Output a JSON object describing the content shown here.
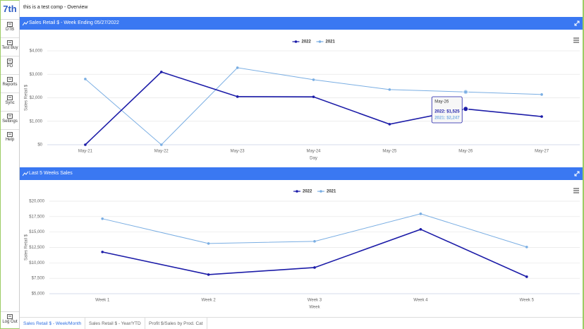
{
  "sidebar": {
    "logo": "7th",
    "items": [
      "DTB",
      "Test Buy",
      "PO",
      "Reports",
      "Sync",
      "Settings",
      "Help"
    ],
    "logout": "Log Out"
  },
  "header": {
    "title": "this is a test comp - Overview"
  },
  "panels": [
    {
      "title": "Sales Retail $ - Week Ending 05/27/2022",
      "chart_data": {
        "type": "line",
        "xlabel": "Day",
        "ylabel": "Sales Retail $",
        "categories": [
          "May-21",
          "May-22",
          "May-23",
          "May-24",
          "May-25",
          "May-26",
          "May-27"
        ],
        "series": [
          {
            "name": "2022",
            "color": "#1c1ca8",
            "values": [
              0,
              3100,
              2050,
              2040,
              875,
              1525,
              1200
            ]
          },
          {
            "name": "2021",
            "color": "#7aaee3",
            "values": [
              2800,
              0,
              3280,
              2770,
              2350,
              2247,
              2140
            ]
          }
        ],
        "ylim": [
          0,
          4000
        ],
        "yticks": [
          {
            "value": 0,
            "label": "$0"
          },
          {
            "value": 1000,
            "label": "$1,000"
          },
          {
            "value": 2000,
            "label": "$2,000"
          },
          {
            "value": 3000,
            "label": "$3,000"
          },
          {
            "value": 4000,
            "label": "$4,000"
          }
        ],
        "grid": true,
        "tooltip": {
          "title": "May-26",
          "lines": [
            "2022: $1,525",
            "2021: $2,247"
          ]
        }
      }
    },
    {
      "title": "Last 5 Weeks Sales",
      "chart_data": {
        "type": "line",
        "xlabel": "Week",
        "ylabel": "Sales Retail $",
        "categories": [
          "Week 1",
          "Week 2",
          "Week 3",
          "Week 4",
          "Week 5"
        ],
        "series": [
          {
            "name": "2022",
            "color": "#1c1ca8",
            "values": [
              11770,
              8100,
              9240,
              15440,
              7750
            ]
          },
          {
            "name": "2021",
            "color": "#7aaee3",
            "values": [
              17160,
              13140,
              13490,
              17960,
              12570
            ]
          }
        ],
        "ylim": [
          5000,
          20000
        ],
        "yticks": [
          {
            "value": 5000,
            "label": "$5,000"
          },
          {
            "value": 7500,
            "label": "$7,500"
          },
          {
            "value": 10000,
            "label": "$10,000"
          },
          {
            "value": 12500,
            "label": "$12,500"
          },
          {
            "value": 15000,
            "label": "$15,000"
          },
          {
            "value": 17500,
            "label": "$17,500"
          },
          {
            "value": 20000,
            "label": "$20,000"
          }
        ],
        "grid": true
      }
    }
  ],
  "tabs": [
    "Sales Retail $ - Week/Month",
    "Sales Retail $ - Year/YTD",
    "Profit $/Sales by Prod. Cat"
  ]
}
